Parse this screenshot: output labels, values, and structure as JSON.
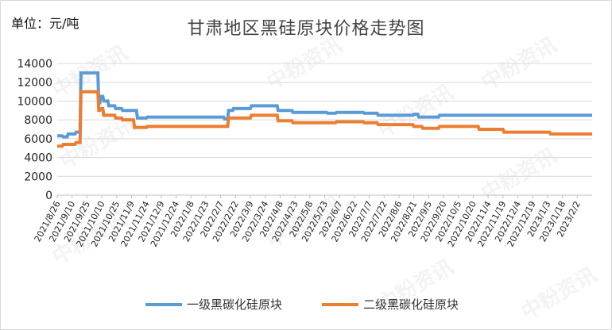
{
  "unit_label": "单位：元/吨",
  "watermark": "中粉资讯",
  "chart_data": {
    "type": "line",
    "title": "甘肃地区黑硅原块价格走势图",
    "ylabel": "单位：元/吨",
    "xlabel": "",
    "ylim": [
      0,
      14000
    ],
    "yticks": [
      0,
      2000,
      4000,
      6000,
      8000,
      10000,
      12000,
      14000
    ],
    "grid": true,
    "legend_position": "bottom",
    "colors": {
      "s1": "#5b9bd5",
      "s2": "#ed7d31"
    },
    "x_start": "2021-08-26",
    "x_end": "2023-02-17",
    "x_tick_labels": [
      "2021/8/26",
      "2021/9/10",
      "2021/9/25",
      "2021/10/10",
      "2021/10/25",
      "2021/11/9",
      "2021/11/24",
      "2021/12/9",
      "2021/12/24",
      "2022/1/8",
      "2022/1/23",
      "2022/2/7",
      "2022/2/22",
      "2022/3/9",
      "2022/3/24",
      "2022/4/8",
      "2022/4/23",
      "2022/5/8",
      "2022/5/23",
      "2022/6/7",
      "2022/6/22",
      "2022/7/7",
      "2022/7/22",
      "2022/8/6",
      "2022/8/21",
      "2022/9/5",
      "2022/9/20",
      "2022/10/5",
      "2022/10/20",
      "2022/11/4",
      "2022/11/19",
      "2022/12/4",
      "2022/12/19",
      "2023/1/3",
      "2023/1/18",
      "2023/2/2"
    ],
    "series": [
      {
        "name": "一级黑碳化硅原块",
        "color": "#5b9bd5",
        "points": [
          [
            "2021-08-26",
            6300
          ],
          [
            "2021-08-31",
            6300
          ],
          [
            "2021-09-01",
            6200
          ],
          [
            "2021-09-05",
            6200
          ],
          [
            "2021-09-06",
            6500
          ],
          [
            "2021-09-13",
            6500
          ],
          [
            "2021-09-14",
            6700
          ],
          [
            "2021-09-18",
            6700
          ],
          [
            "2021-09-19",
            13000
          ],
          [
            "2021-10-06",
            13000
          ],
          [
            "2021-10-07",
            9800
          ],
          [
            "2021-10-08",
            9800
          ],
          [
            "2021-10-09",
            10500
          ],
          [
            "2021-10-11",
            10500
          ],
          [
            "2021-10-12",
            10000
          ],
          [
            "2021-10-16",
            10000
          ],
          [
            "2021-10-17",
            9500
          ],
          [
            "2021-10-23",
            9500
          ],
          [
            "2021-10-24",
            9200
          ],
          [
            "2021-10-30",
            9200
          ],
          [
            "2021-10-31",
            9000
          ],
          [
            "2021-11-14",
            9000
          ],
          [
            "2021-11-15",
            8200
          ],
          [
            "2021-11-24",
            8200
          ],
          [
            "2021-11-25",
            8300
          ],
          [
            "2022-02-10",
            8300
          ],
          [
            "2022-02-11",
            8100
          ],
          [
            "2022-02-14",
            8100
          ],
          [
            "2022-02-15",
            9000
          ],
          [
            "2022-02-19",
            9000
          ],
          [
            "2022-02-20",
            9200
          ],
          [
            "2022-03-09",
            9200
          ],
          [
            "2022-03-10",
            9500
          ],
          [
            "2022-04-05",
            9500
          ],
          [
            "2022-04-06",
            9000
          ],
          [
            "2022-04-20",
            9000
          ],
          [
            "2022-04-21",
            8800
          ],
          [
            "2022-05-25",
            8800
          ],
          [
            "2022-05-26",
            8700
          ],
          [
            "2022-06-03",
            8700
          ],
          [
            "2022-06-04",
            8800
          ],
          [
            "2022-07-01",
            8800
          ],
          [
            "2022-07-02",
            8700
          ],
          [
            "2022-07-15",
            8700
          ],
          [
            "2022-07-16",
            8500
          ],
          [
            "2022-08-20",
            8500
          ],
          [
            "2022-08-21",
            8600
          ],
          [
            "2022-08-25",
            8600
          ],
          [
            "2022-08-26",
            8300
          ],
          [
            "2022-09-15",
            8300
          ],
          [
            "2022-09-16",
            8500
          ],
          [
            "2023-02-17",
            8500
          ]
        ]
      },
      {
        "name": "二级黑碳化硅原块",
        "color": "#ed7d31",
        "points": [
          [
            "2021-08-26",
            5200
          ],
          [
            "2021-08-31",
            5200
          ],
          [
            "2021-09-01",
            5400
          ],
          [
            "2021-09-13",
            5400
          ],
          [
            "2021-09-14",
            5600
          ],
          [
            "2021-09-18",
            5600
          ],
          [
            "2021-09-19",
            11000
          ],
          [
            "2021-10-06",
            11000
          ],
          [
            "2021-10-07",
            9000
          ],
          [
            "2021-10-08",
            9000
          ],
          [
            "2021-10-09",
            9200
          ],
          [
            "2021-10-11",
            9200
          ],
          [
            "2021-10-12",
            8500
          ],
          [
            "2021-10-23",
            8500
          ],
          [
            "2021-10-24",
            8200
          ],
          [
            "2021-10-30",
            8200
          ],
          [
            "2021-10-31",
            8000
          ],
          [
            "2021-11-11",
            8000
          ],
          [
            "2021-11-12",
            7200
          ],
          [
            "2021-11-24",
            7200
          ],
          [
            "2021-11-25",
            7300
          ],
          [
            "2022-02-14",
            7300
          ],
          [
            "2022-02-15",
            8200
          ],
          [
            "2022-03-09",
            8200
          ],
          [
            "2022-03-10",
            8500
          ],
          [
            "2022-04-05",
            8500
          ],
          [
            "2022-04-06",
            7900
          ],
          [
            "2022-04-20",
            7900
          ],
          [
            "2022-04-21",
            7700
          ],
          [
            "2022-06-03",
            7700
          ],
          [
            "2022-06-04",
            7800
          ],
          [
            "2022-07-01",
            7800
          ],
          [
            "2022-07-02",
            7700
          ],
          [
            "2022-07-15",
            7700
          ],
          [
            "2022-07-16",
            7500
          ],
          [
            "2022-08-20",
            7500
          ],
          [
            "2022-08-21",
            7300
          ],
          [
            "2022-08-29",
            7300
          ],
          [
            "2022-08-30",
            7100
          ],
          [
            "2022-09-15",
            7100
          ],
          [
            "2022-09-16",
            7300
          ],
          [
            "2022-10-25",
            7300
          ],
          [
            "2022-10-26",
            7000
          ],
          [
            "2022-11-19",
            7000
          ],
          [
            "2022-11-20",
            6700
          ],
          [
            "2023-01-05",
            6700
          ],
          [
            "2023-01-06",
            6500
          ],
          [
            "2023-02-17",
            6500
          ]
        ]
      }
    ]
  }
}
